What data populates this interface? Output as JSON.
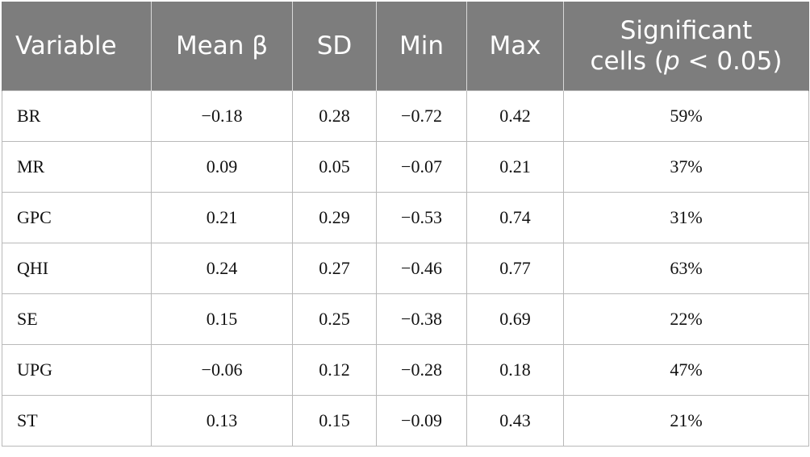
{
  "table": {
    "headers": {
      "variable": "Variable",
      "mean": "Mean β",
      "sd": "SD",
      "min": "Min",
      "max": "Max",
      "significant_line1": "Significant",
      "significant_line2_prefix": "cells (",
      "significant_line2_p": "p",
      "significant_line2_suffix": " < 0.05)"
    },
    "rows": [
      {
        "variable": "BR",
        "mean": "−0.18",
        "sd": "0.28",
        "min": "−0.72",
        "max": "0.42",
        "significant": "59%"
      },
      {
        "variable": "MR",
        "mean": "0.09",
        "sd": "0.05",
        "min": "−0.07",
        "max": "0.21",
        "significant": "37%"
      },
      {
        "variable": "GPC",
        "mean": "0.21",
        "sd": "0.29",
        "min": "−0.53",
        "max": "0.74",
        "significant": "31%"
      },
      {
        "variable": "QHI",
        "mean": "0.24",
        "sd": "0.27",
        "min": "−0.46",
        "max": "0.77",
        "significant": "63%"
      },
      {
        "variable": "SE",
        "mean": "0.15",
        "sd": "0.25",
        "min": "−0.38",
        "max": "0.69",
        "significant": "22%"
      },
      {
        "variable": "UPG",
        "mean": "−0.06",
        "sd": "0.12",
        "min": "−0.28",
        "max": "0.18",
        "significant": "47%"
      },
      {
        "variable": "ST",
        "mean": "0.13",
        "sd": "0.15",
        "min": "−0.09",
        "max": "0.43",
        "significant": "21%"
      }
    ]
  }
}
